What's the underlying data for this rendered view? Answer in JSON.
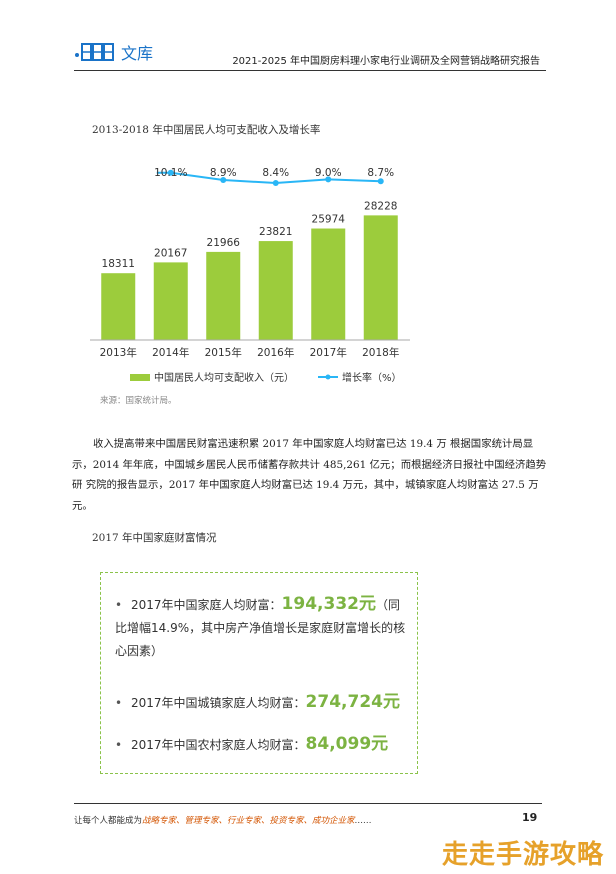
{
  "header": {
    "logo_text": "文库",
    "title": "2021-2025 年中国厨房料理小家电行业调研及全网营销战略研究报告"
  },
  "chart_data": {
    "type": "bar",
    "title": "2013-2018 年中国居民人均可支配收入及增长率",
    "categories": [
      "2013年",
      "2014年",
      "2015年",
      "2016年",
      "2017年",
      "2018年"
    ],
    "series": [
      {
        "name": "中国居民人均可支配收入（元）",
        "type": "bar",
        "values": [
          18311,
          20167,
          21966,
          23821,
          25974,
          28228
        ],
        "color": "#9ccc3c"
      },
      {
        "name": "增长率（%）",
        "type": "line",
        "values": [
          null,
          10.1,
          8.9,
          8.4,
          9.0,
          8.7
        ],
        "labels": [
          "",
          "10.1%",
          "8.9%",
          "8.4%",
          "9.0%",
          "8.7%"
        ],
        "color": "#29b6f6"
      }
    ],
    "ylim": [
      0,
      30000
    ],
    "grid": false,
    "legend": "bottom"
  },
  "source": "来源：国家统计局。",
  "paragraph": "收入提高带来中国居民财富迅速积累 2017 年中国家庭人均财富已达 19.4 万 根据国家统计局显示，2014 年年底，中国城乡居民人民币储蓄存款共计 485,261 亿元；而根据经济日报社中国经济趋势研 究院的报告显示，2017 年中国家庭人均财富已达 19.4 万元，其中，城镇家庭人均财富达 27.5 万元。",
  "section_title": "2017 年中国家庭财富情况",
  "wealth": [
    {
      "bullet": "•",
      "pre": "2017年中国家庭人均财富：",
      "value": "194,332元",
      "post": "（同比增幅14.9%，其中房产净值增长是家庭财富增长的核心因素）"
    },
    {
      "bullet": "•",
      "pre": "2017年中国城镇家庭人均财富：",
      "value": "274,724元",
      "post": ""
    },
    {
      "bullet": "•",
      "pre": "2017年中国农村家庭人均财富：",
      "value": "84,099元",
      "post": ""
    }
  ],
  "footer": {
    "prefix": "让每个人都能成为",
    "roles": "战略专家、管理专家、行业专家、投资专家、成功企业家",
    "suffix": "……",
    "page": "19"
  },
  "brand": "走走手游攻略"
}
